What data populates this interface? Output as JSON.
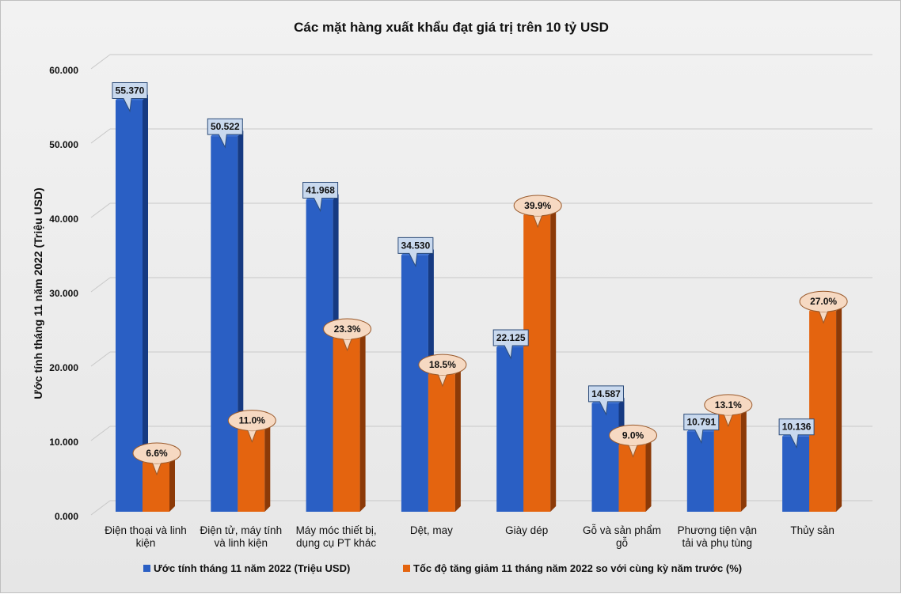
{
  "chart_data": {
    "type": "bar",
    "title": "Các mặt hàng xuất khẩu đạt giá trị trên 10 tỷ USD",
    "xlabel": "",
    "ylabel": "Ước tính tháng 11 năm 2022 (Triệu USD)",
    "ylim": [
      0,
      60000
    ],
    "yticks": [
      "0.000",
      "10.000",
      "20.000",
      "30.000",
      "40.000",
      "50.000",
      "60.000"
    ],
    "categories": [
      [
        "Điện thoại và linh",
        "kiện"
      ],
      [
        "Điện tử, máy tính",
        "và linh kiện"
      ],
      [
        "Máy móc thiết bị,",
        "dụng cụ PT khác"
      ],
      [
        "Dệt, may"
      ],
      [
        "Giày dép"
      ],
      [
        "Gỗ và sản phẩm",
        "gỗ"
      ],
      [
        "Phương tiện vận",
        "tải và phụ tùng"
      ],
      [
        "Thủy sản"
      ]
    ],
    "series": [
      {
        "name": "Ước tính tháng 11 năm 2022 (Triệu USD)",
        "values": [
          55370,
          50522,
          41968,
          34530,
          22125,
          14587,
          10791,
          10136
        ],
        "labels": [
          "55.370",
          "50.522",
          "41.968",
          "34.530",
          "22.125",
          "14.587",
          "10.791",
          "10.136"
        ],
        "color": "#2a5fc4",
        "side": "#163a82",
        "top": "#3f74d6",
        "label_bg": "#c9d9ee",
        "label_border": "#2e4d7a"
      },
      {
        "name": "Tốc độ tăng giảm 11 tháng năm 2022 so với cùng kỳ năm trước (%)",
        "values": [
          6.6,
          11.0,
          23.3,
          18.5,
          39.9,
          9.0,
          13.1,
          27.0
        ],
        "labels": [
          "6.6%",
          "11.0%",
          "23.3%",
          "18.5%",
          "39.9%",
          "9.0%",
          "13.1%",
          "27.0%"
        ],
        "color": "#e4640f",
        "side": "#8c3a08",
        "top": "#ec7c2e",
        "label_bg": "#f6d9c2",
        "label_border": "#9a5a2c"
      }
    ],
    "grid": true,
    "legend_position": "bottom"
  }
}
